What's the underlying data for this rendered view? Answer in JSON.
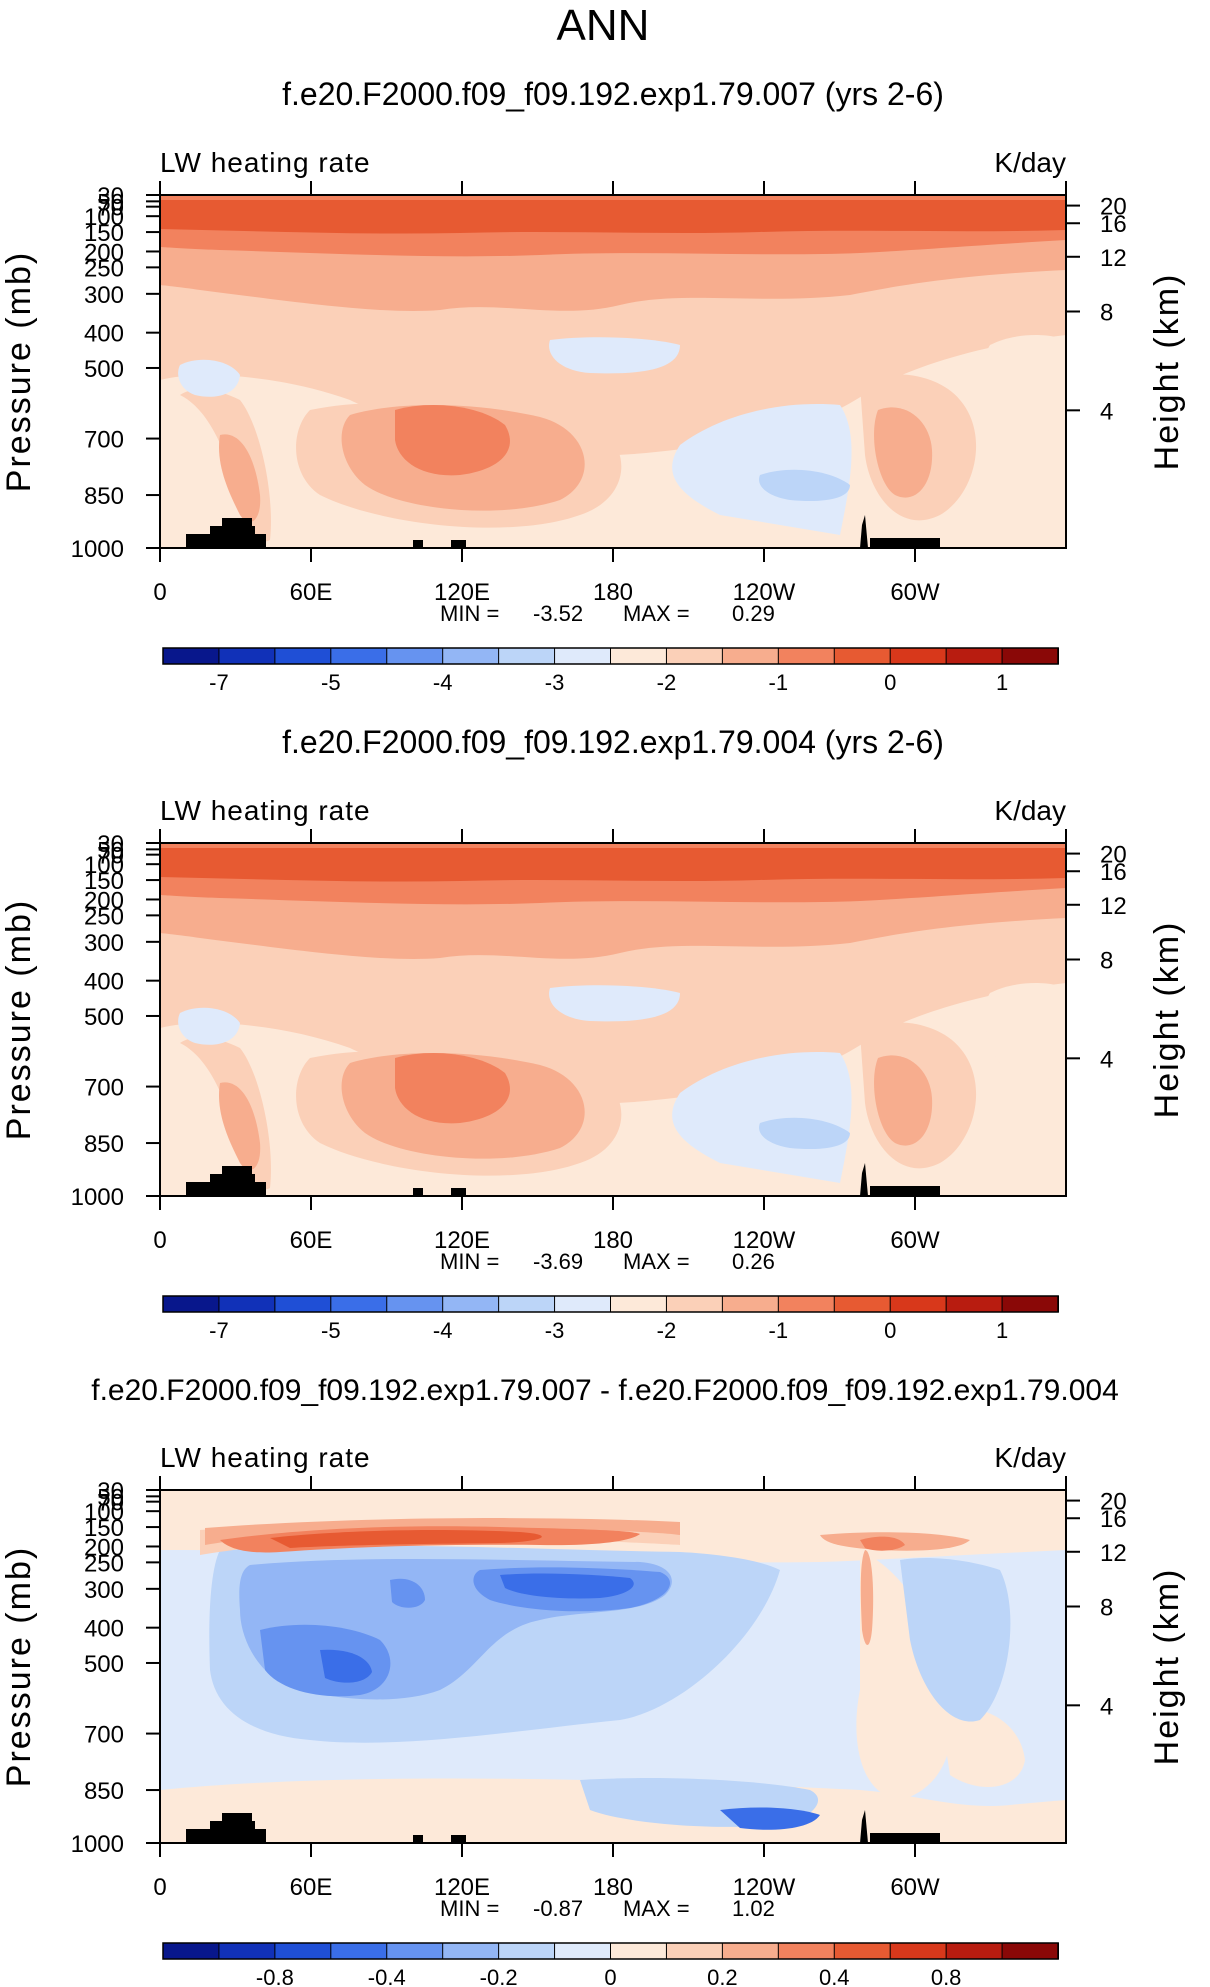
{
  "main_title": "ANN",
  "chart_data": [
    {
      "type": "heatmap",
      "title": "f.e20.F2000.f09_f09.192.exp1.79.007 (yrs 2-6)",
      "variable_label": "LW heating rate",
      "units_label": "K/day",
      "ylabel": "Pressure (mb)",
      "ylabel_right": "Height (km)",
      "x_ticks": [
        "0",
        "60E",
        "120E",
        "180",
        "120W",
        "60W"
      ],
      "y_ticks": [
        "30",
        "50",
        "70",
        "100",
        "150",
        "200",
        "250",
        "300",
        "400",
        "500",
        "700",
        "850",
        "1000"
      ],
      "y_ticks_right": [
        "20",
        "16",
        "12",
        "8",
        "4"
      ],
      "min_label": "MIN =",
      "min_value": "-3.52",
      "max_label": "MAX =",
      "max_value": "0.29",
      "colorbar_labels": [
        "-7",
        "-5",
        "-4",
        "-3",
        "-2",
        "-1",
        "0",
        "1"
      ]
    },
    {
      "type": "heatmap",
      "title": "f.e20.F2000.f09_f09.192.exp1.79.004 (yrs 2-6)",
      "variable_label": "LW heating rate",
      "units_label": "K/day",
      "ylabel": "Pressure (mb)",
      "ylabel_right": "Height (km)",
      "x_ticks": [
        "0",
        "60E",
        "120E",
        "180",
        "120W",
        "60W"
      ],
      "y_ticks": [
        "30",
        "50",
        "70",
        "100",
        "150",
        "200",
        "250",
        "300",
        "400",
        "500",
        "700",
        "850",
        "1000"
      ],
      "y_ticks_right": [
        "20",
        "16",
        "12",
        "8",
        "4"
      ],
      "min_label": "MIN =",
      "min_value": "-3.69",
      "max_label": "MAX =",
      "max_value": "0.26",
      "colorbar_labels": [
        "-7",
        "-5",
        "-4",
        "-3",
        "-2",
        "-1",
        "0",
        "1"
      ]
    },
    {
      "type": "heatmap",
      "title": "f.e20.F2000.f09_f09.192.exp1.79.007 - f.e20.F2000.f09_f09.192.exp1.79.004",
      "variable_label": "LW heating rate",
      "units_label": "K/day",
      "ylabel": "Pressure (mb)",
      "ylabel_right": "Height (km)",
      "x_ticks": [
        "0",
        "60E",
        "120E",
        "180",
        "120W",
        "60W"
      ],
      "y_ticks": [
        "30",
        "50",
        "70",
        "100",
        "150",
        "200",
        "250",
        "300",
        "400",
        "500",
        "700",
        "850",
        "1000"
      ],
      "y_ticks_right": [
        "20",
        "16",
        "12",
        "8",
        "4"
      ],
      "min_label": "MIN =",
      "min_value": "-0.87",
      "max_label": "MAX =",
      "max_value": "1.02",
      "colorbar_labels": [
        "-0.8",
        "-0.4",
        "-0.2",
        "0",
        "0.2",
        "0.4",
        "0.8"
      ]
    }
  ],
  "colors": {
    "colorbar": [
      "#08178c",
      "#1131b8",
      "#1f4fd6",
      "#3a6ee8",
      "#6693f0",
      "#93b6f5",
      "#bcd5f8",
      "#dfeafb",
      "#fde9d9",
      "#fbd0b8",
      "#f7ad8e",
      "#f2825e",
      "#e75a32",
      "#d8381b",
      "#b81c10",
      "#8a0807"
    ],
    "topography": "#000000"
  }
}
